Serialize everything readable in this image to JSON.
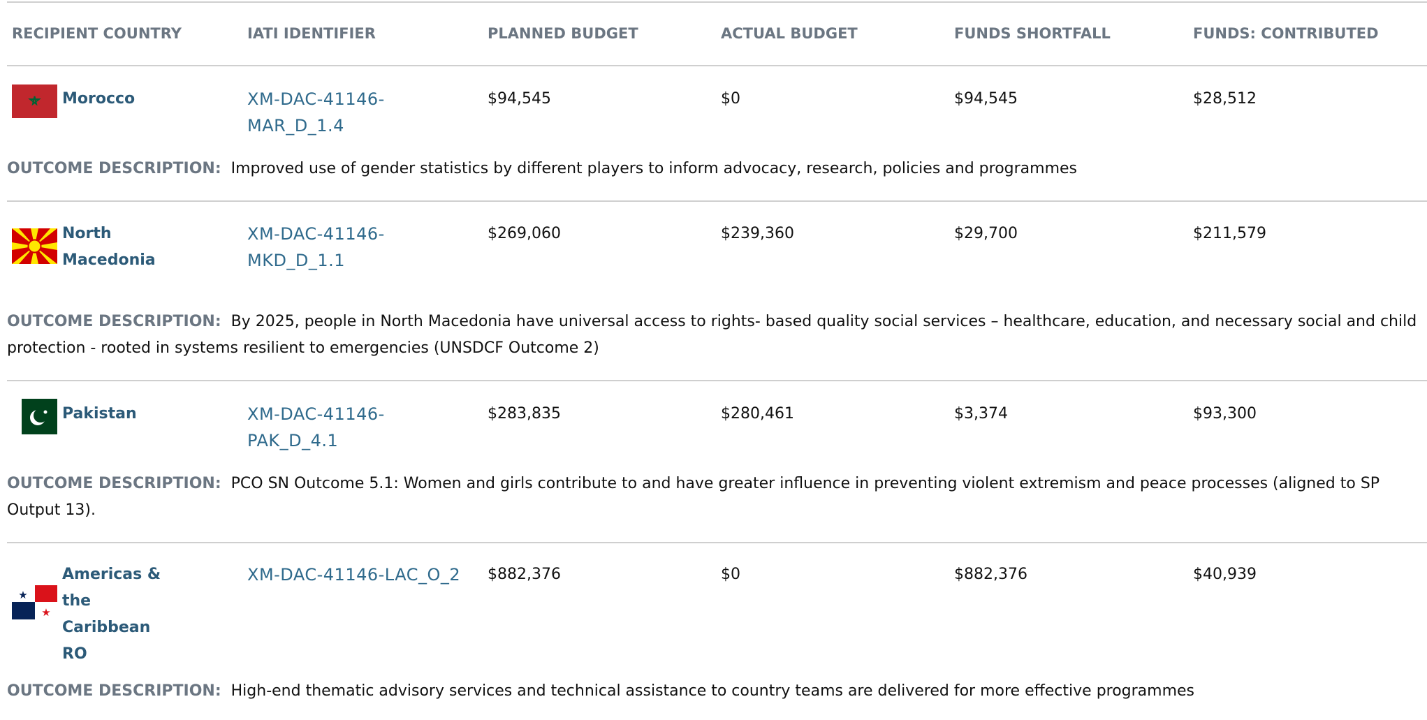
{
  "table": {
    "headers": [
      "RECIPIENT COUNTRY",
      "IATI IDENTIFIER",
      "PLANNED BUDGET",
      "ACTUAL BUDGET",
      "FUNDS SHORTFALL",
      "FUNDS: CONTRIBUTED"
    ],
    "outcome_label": "OUTCOME DESCRIPTION:",
    "rows": [
      {
        "country": "Morocco",
        "iati": "XM-DAC-41146-MAR_D_1.4",
        "planned": "$94,545",
        "actual": "$0",
        "shortfall": "$94,545",
        "contributed": "$28,512",
        "outcome": "Improved use of gender statistics by different players to inform advocacy, research, policies and programmes"
      },
      {
        "country": "North Macedonia",
        "iati": "XM-DAC-41146-MKD_D_1.1",
        "planned": "$269,060",
        "actual": "$239,360",
        "shortfall": "$29,700",
        "contributed": "$211,579",
        "outcome": "By 2025, people in North Macedonia have universal access to rights- based quality social services – healthcare, education, and necessary social and child protection - rooted in systems resilient to emergencies (UNSDCF Outcome 2)"
      },
      {
        "country": "Pakistan",
        "iati": "XM-DAC-41146-PAK_D_4.1",
        "planned": "$283,835",
        "actual": "$280,461",
        "shortfall": "$3,374",
        "contributed": "$93,300",
        "outcome": "PCO SN Outcome 5.1: Women and girls contribute to and have greater influence in preventing violent extremism and peace processes (aligned to SP Output 13)."
      },
      {
        "country": "Americas & the Caribbean RO",
        "iati": "XM-DAC-41146-LAC_O_2",
        "planned": "$882,376",
        "actual": "$0",
        "shortfall": "$882,376",
        "contributed": "$40,939",
        "outcome": "High-end thematic advisory services and technical assistance to country teams are delivered for more effective programmes"
      }
    ]
  }
}
